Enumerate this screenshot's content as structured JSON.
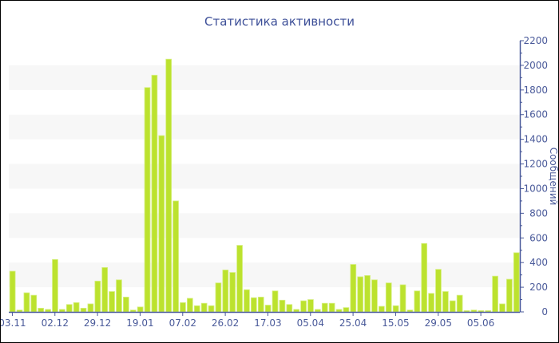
{
  "chart_data": {
    "type": "bar",
    "title": "Статистика активности",
    "ylabel": "Сообщений",
    "xlabel": "",
    "ylim": [
      0,
      2200
    ],
    "yticks": [
      0,
      200,
      400,
      600,
      800,
      1000,
      1200,
      1400,
      1600,
      1800,
      2000,
      2200
    ],
    "y_axis_side": "right",
    "grid": "alternating horizontal bands",
    "bar_color": "#bce22e",
    "axis_color": "#4a5a9a",
    "x_tick_labels": [
      {
        "index": 0,
        "label": "03.11"
      },
      {
        "index": 6,
        "label": "02.12"
      },
      {
        "index": 12,
        "label": "29.12"
      },
      {
        "index": 18,
        "label": "19.01"
      },
      {
        "index": 24,
        "label": "07.02"
      },
      {
        "index": 30,
        "label": "26.02"
      },
      {
        "index": 36,
        "label": "17.03"
      },
      {
        "index": 42,
        "label": "05.04"
      },
      {
        "index": 48,
        "label": "25.04"
      },
      {
        "index": 54,
        "label": "15.05"
      },
      {
        "index": 60,
        "label": "29.05"
      },
      {
        "index": 66,
        "label": "05.06"
      }
    ],
    "values": [
      330,
      15,
      155,
      135,
      30,
      20,
      425,
      20,
      60,
      75,
      30,
      65,
      250,
      360,
      165,
      260,
      120,
      15,
      40,
      1820,
      1920,
      1430,
      2050,
      900,
      75,
      110,
      50,
      70,
      50,
      235,
      340,
      320,
      540,
      180,
      115,
      120,
      55,
      170,
      95,
      60,
      20,
      90,
      100,
      20,
      70,
      70,
      20,
      35,
      385,
      285,
      295,
      260,
      45,
      235,
      50,
      220,
      15,
      170,
      555,
      150,
      345,
      165,
      90,
      135,
      10,
      15,
      10,
      10,
      290,
      65,
      265,
      480
    ]
  }
}
